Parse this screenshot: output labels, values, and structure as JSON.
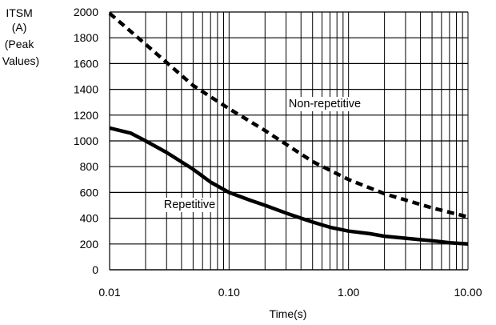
{
  "chart_data": {
    "type": "line",
    "x_scale": "log",
    "ylabel_lines": [
      "ITSM",
      "(A)",
      "(Peak",
      "Values)"
    ],
    "xlabel": "Time(s)",
    "xlim": [
      0.01,
      10.0
    ],
    "ylim": [
      0,
      2000
    ],
    "x_tick_labels": [
      "0.01",
      "0.10",
      "1.00",
      "10.00"
    ],
    "y_tick_labels": [
      "0",
      "200",
      "400",
      "600",
      "800",
      "1000",
      "1200",
      "1400",
      "1600",
      "1800",
      "2000"
    ],
    "grid": true,
    "series": [
      {
        "name": "Non-repetitive",
        "style": "dashed",
        "color": "#000000",
        "x": [
          0.01,
          0.02,
          0.05,
          0.1,
          0.2,
          0.5,
          1.0,
          2.0,
          5.0,
          10.0
        ],
        "y": [
          1990,
          1750,
          1430,
          1250,
          1080,
          840,
          700,
          590,
          480,
          410
        ]
      },
      {
        "name": "Repetitive",
        "style": "solid",
        "color": "#000000",
        "x": [
          0.01,
          0.015,
          0.02,
          0.03,
          0.05,
          0.07,
          0.1,
          0.15,
          0.2,
          0.3,
          0.5,
          0.7,
          1.0,
          1.5,
          2.0,
          3.0,
          5.0,
          7.0,
          10.0
        ],
        "y": [
          1100,
          1060,
          1000,
          910,
          780,
          680,
          600,
          540,
          500,
          440,
          370,
          330,
          300,
          280,
          260,
          245,
          225,
          210,
          200
        ]
      }
    ]
  }
}
